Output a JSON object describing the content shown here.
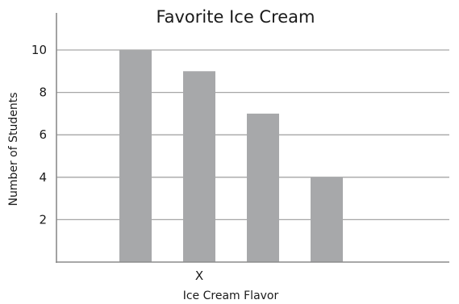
{
  "chart_data": {
    "type": "bar",
    "title": "Favorite Ice Cream",
    "xlabel": "Ice Cream Flavor",
    "ylabel": "Number of Students",
    "categories": [
      "",
      "",
      "",
      ""
    ],
    "x_tick_labels": [
      "X"
    ],
    "values": [
      10,
      9,
      7,
      4
    ],
    "ylim": [
      0,
      11
    ],
    "yticks": [
      2,
      4,
      6,
      8,
      10
    ],
    "grid": true,
    "bar_color": "#a7a8aa"
  }
}
